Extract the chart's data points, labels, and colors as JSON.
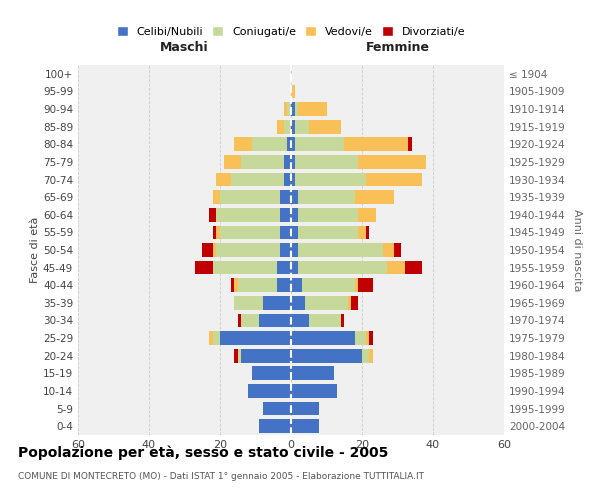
{
  "age_groups": [
    "0-4",
    "5-9",
    "10-14",
    "15-19",
    "20-24",
    "25-29",
    "30-34",
    "35-39",
    "40-44",
    "45-49",
    "50-54",
    "55-59",
    "60-64",
    "65-69",
    "70-74",
    "75-79",
    "80-84",
    "85-89",
    "90-94",
    "95-99",
    "100+"
  ],
  "birth_years": [
    "2000-2004",
    "1995-1999",
    "1990-1994",
    "1985-1989",
    "1980-1984",
    "1975-1979",
    "1970-1974",
    "1965-1969",
    "1960-1964",
    "1955-1959",
    "1950-1954",
    "1945-1949",
    "1940-1944",
    "1935-1939",
    "1930-1934",
    "1925-1929",
    "1920-1924",
    "1915-1919",
    "1910-1914",
    "1905-1909",
    "≤ 1904"
  ],
  "male": {
    "celibi": [
      9,
      8,
      12,
      11,
      14,
      20,
      9,
      8,
      4,
      4,
      3,
      3,
      3,
      3,
      2,
      2,
      1,
      0,
      0,
      0,
      0
    ],
    "coniugati": [
      0,
      0,
      0,
      0,
      1,
      2,
      5,
      8,
      11,
      18,
      18,
      17,
      18,
      17,
      15,
      12,
      10,
      2,
      1,
      0,
      0
    ],
    "vedovi": [
      0,
      0,
      0,
      0,
      0,
      1,
      0,
      0,
      1,
      0,
      1,
      1,
      0,
      2,
      4,
      5,
      5,
      2,
      1,
      0,
      0
    ],
    "divorziati": [
      0,
      0,
      0,
      0,
      1,
      0,
      1,
      0,
      1,
      5,
      3,
      1,
      2,
      0,
      0,
      0,
      0,
      0,
      0,
      0,
      0
    ]
  },
  "female": {
    "nubili": [
      8,
      8,
      13,
      12,
      20,
      18,
      5,
      4,
      3,
      2,
      2,
      2,
      2,
      2,
      1,
      1,
      1,
      1,
      1,
      0,
      0
    ],
    "coniugate": [
      0,
      0,
      0,
      0,
      2,
      3,
      9,
      12,
      15,
      25,
      24,
      17,
      17,
      16,
      20,
      18,
      14,
      4,
      1,
      0,
      0
    ],
    "vedove": [
      0,
      0,
      0,
      0,
      1,
      1,
      0,
      1,
      1,
      5,
      3,
      2,
      5,
      11,
      16,
      19,
      18,
      9,
      8,
      1,
      0
    ],
    "divorziate": [
      0,
      0,
      0,
      0,
      0,
      1,
      1,
      2,
      4,
      5,
      2,
      1,
      0,
      0,
      0,
      0,
      1,
      0,
      0,
      0,
      0
    ]
  },
  "colors": {
    "celibi": "#4472C4",
    "coniugati": "#C6D99A",
    "vedovi": "#FAC058",
    "divorziati": "#C00000"
  },
  "xlim": 60,
  "title": "Popolazione per età, sesso e stato civile - 2005",
  "subtitle": "COMUNE DI MONTECRETO (MO) - Dati ISTAT 1° gennaio 2005 - Elaborazione TUTTITALIA.IT",
  "ylabel_left": "Fasce di età",
  "ylabel_right": "Anni di nascita",
  "xlabel_left": "Maschi",
  "xlabel_right": "Femmine",
  "legend_labels": [
    "Celibi/Nubili",
    "Coniugati/e",
    "Vedovi/e",
    "Divorziati/e"
  ],
  "bg_color": "#f0f0f0",
  "grid_color": "#cccccc"
}
